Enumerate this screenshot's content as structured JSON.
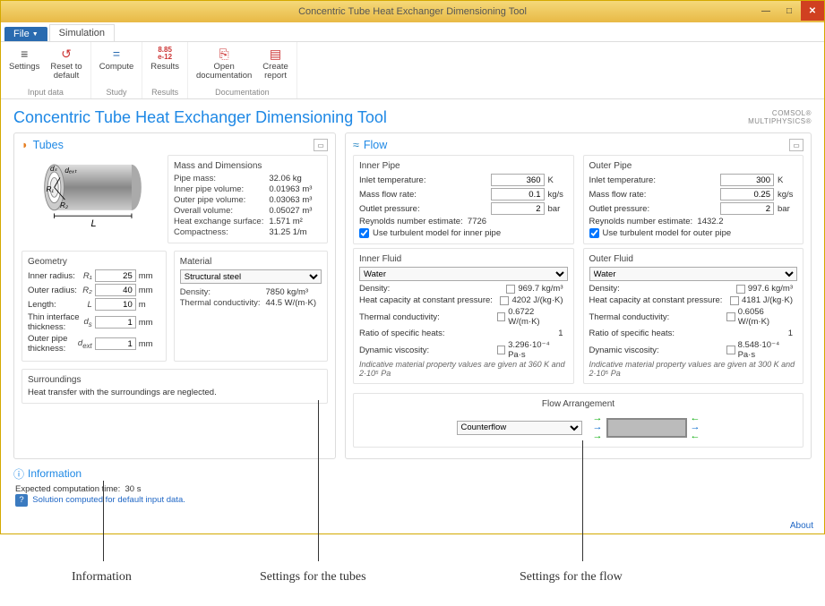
{
  "window": {
    "title": "Concentric Tube Heat Exchanger Dimensioning Tool"
  },
  "menubar": {
    "file": "File",
    "tab_sim": "Simulation"
  },
  "ribbon": {
    "groups": [
      {
        "caption": "Input data",
        "items": [
          {
            "name": "settings",
            "label": "Settings",
            "icon": "≡"
          },
          {
            "name": "reset",
            "label": "Reset to\ndefault",
            "icon": "↺"
          }
        ]
      },
      {
        "caption": "Study",
        "items": [
          {
            "name": "compute",
            "label": "Compute",
            "icon": "="
          }
        ]
      },
      {
        "caption": "Results",
        "items": [
          {
            "name": "results",
            "label": "Results",
            "icon": "8.85",
            "icon2": "e-12"
          }
        ]
      },
      {
        "caption": "Documentation",
        "items": [
          {
            "name": "opendoc",
            "label": "Open\ndocumentation",
            "icon": "⎘"
          },
          {
            "name": "report",
            "label": "Create\nreport",
            "icon": "▤"
          }
        ]
      }
    ]
  },
  "page": {
    "title": "Concentric Tube Heat Exchanger Dimensioning Tool",
    "brand1": "COMSOL",
    "brand2": "MULTIPHYSICS"
  },
  "tubes": {
    "title": "Tubes",
    "mass_hdr": "Mass and Dimensions",
    "mass": [
      {
        "lab": "Pipe mass:",
        "val": "32.06 kg"
      },
      {
        "lab": "Inner pipe volume:",
        "val": "0.01963 m³"
      },
      {
        "lab": "Outer pipe volume:",
        "val": "0.03063 m³"
      },
      {
        "lab": "Overall volume:",
        "val": "0.05027 m³"
      },
      {
        "lab": "Heat exchange surface:",
        "val": "1.571 m²"
      },
      {
        "lab": "Compactness:",
        "val": "31.25 1/m"
      }
    ],
    "geom_hdr": "Geometry",
    "geom": [
      {
        "lab": "Inner radius:",
        "sym": "R₁",
        "val": "25",
        "unit": "mm"
      },
      {
        "lab": "Outer radius:",
        "sym": "R₂",
        "val": "40",
        "unit": "mm"
      },
      {
        "lab": "Length:",
        "sym": "L",
        "val": "10",
        "unit": "m"
      },
      {
        "lab": "Thin interface thickness:",
        "sym": "d<sub>s</sub>",
        "val": "1",
        "unit": "mm"
      },
      {
        "lab": "Outer pipe thickness:",
        "sym": "d<sub>ext</sub>",
        "val": "1",
        "unit": "mm"
      }
    ],
    "mat_hdr": "Material",
    "mat_sel": "Structural steel",
    "mat": [
      {
        "lab": "Density:",
        "val": "7850 kg/m³"
      },
      {
        "lab": "Thermal conductivity:",
        "val": "44.5 W/(m·K)"
      }
    ],
    "surr_hdr": "Surroundings",
    "surr_txt": "Heat transfer with the surroundings are neglected."
  },
  "flow": {
    "title": "Flow",
    "inner_hdr": "Inner Pipe",
    "outer_hdr": "Outer Pipe",
    "inlet_temp_lab": "Inlet temperature:",
    "massflow_lab": "Mass flow rate:",
    "outletp_lab": "Outlet pressure:",
    "reynolds_lab": "Reynolds number estimate:",
    "chk_inner": "Use turbulent model for inner pipe",
    "chk_outer": "Use turbulent model for outer pipe",
    "inner": {
      "T": "360",
      "T_u": "K",
      "m": "0.1",
      "m_u": "kg/s",
      "p": "2",
      "p_u": "bar",
      "Re": "7726"
    },
    "outer": {
      "T": "300",
      "T_u": "K",
      "m": "0.25",
      "m_u": "kg/s",
      "p": "2",
      "p_u": "bar",
      "Re": "1432.2"
    },
    "fluid_inner_hdr": "Inner Fluid",
    "fluid_outer_hdr": "Outer Fluid",
    "fluid_sel": "Water",
    "props_labs": {
      "rho": "Density:",
      "cp": "Heat capacity at constant pressure:",
      "k": "Thermal conductivity:",
      "gamma": "Ratio of specific heats:",
      "mu": "Dynamic viscosity:"
    },
    "inner_fluid": {
      "rho": "969.7 kg/m³",
      "cp": "4202 J/(kg·K)",
      "k": "0.6722 W/(m·K)",
      "gamma": "1",
      "mu": "3.296·10⁻⁴ Pa·s",
      "note": "Indicative material property values are given at  360 K   and   2·10⁵ Pa"
    },
    "outer_fluid": {
      "rho": "997.6 kg/m³",
      "cp": "4181 J/(kg·K)",
      "k": "0.6056 W/(m·K)",
      "gamma": "1",
      "mu": "8.548·10⁻⁴ Pa·s",
      "note": "Indicative material property values are given at  300 K   and   2·10⁵ Pa"
    },
    "arr_hdr": "Flow Arrangement",
    "arr_sel": "Counterflow"
  },
  "info": {
    "title": "Information",
    "ect_lab": "Expected computation time:",
    "ect_val": "30 s",
    "msg": "Solution computed for default input data."
  },
  "about": "About",
  "callouts": {
    "info": "Information",
    "tubes": "Settings for the tubes",
    "flow": "Settings for the flow"
  },
  "colors": {
    "accent": "#1e88e5",
    "titlebar": "#e8b945",
    "close": "#d04020"
  }
}
